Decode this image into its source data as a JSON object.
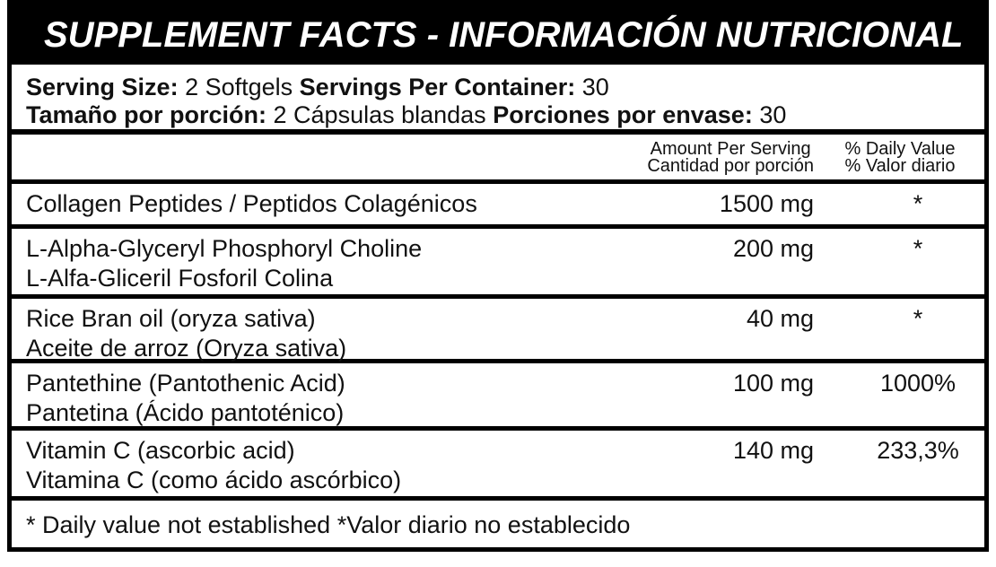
{
  "header": {
    "title": "SUPPLEMENT FACTS - INFORMACIÓN NUTRICIONAL"
  },
  "serving": [
    [
      {
        "label": "Serving Size:",
        "value": "2 Softgels"
      },
      {
        "label": "Servings Per Container:",
        "value": "30"
      }
    ],
    [
      {
        "label": "Tamaño por porción:",
        "value": "2 Cápsulas blandas"
      },
      {
        "label": "Porciones por envase:",
        "value": "30"
      }
    ]
  ],
  "columns": {
    "amount": [
      "Amount Per Serving",
      "Cantidad por porción"
    ],
    "daily_value": [
      "% Daily Value",
      "% Valor diario"
    ]
  },
  "rows": [
    {
      "name": [
        "Collagen Peptides / Peptidos Colagénicos"
      ],
      "amount": "1500 mg",
      "daily_value": "*"
    },
    {
      "name": [
        "L-Alpha-Glyceryl Phosphoryl Choline",
        "L-Alfa-Gliceril Fosforil Colina"
      ],
      "amount": "200 mg",
      "daily_value": "*"
    },
    {
      "name": [
        "Rice Bran oil (oryza sativa)",
        "Aceite de arroz  (Oryza sativa)"
      ],
      "amount": "40 mg",
      "daily_value": "*"
    },
    {
      "name": [
        "Pantethine (Pantothenic Acid)",
        "Pantetina (Ácido pantoténico)"
      ],
      "amount": "100 mg",
      "daily_value": "1000%"
    },
    {
      "name": [
        "Vitamin C (ascorbic acid)",
        "Vitamina C (como ácido ascórbico)"
      ],
      "amount": "140 mg",
      "daily_value": "233,3%"
    }
  ],
  "footnote": "* Daily value not established *Valor diario no establecido"
}
